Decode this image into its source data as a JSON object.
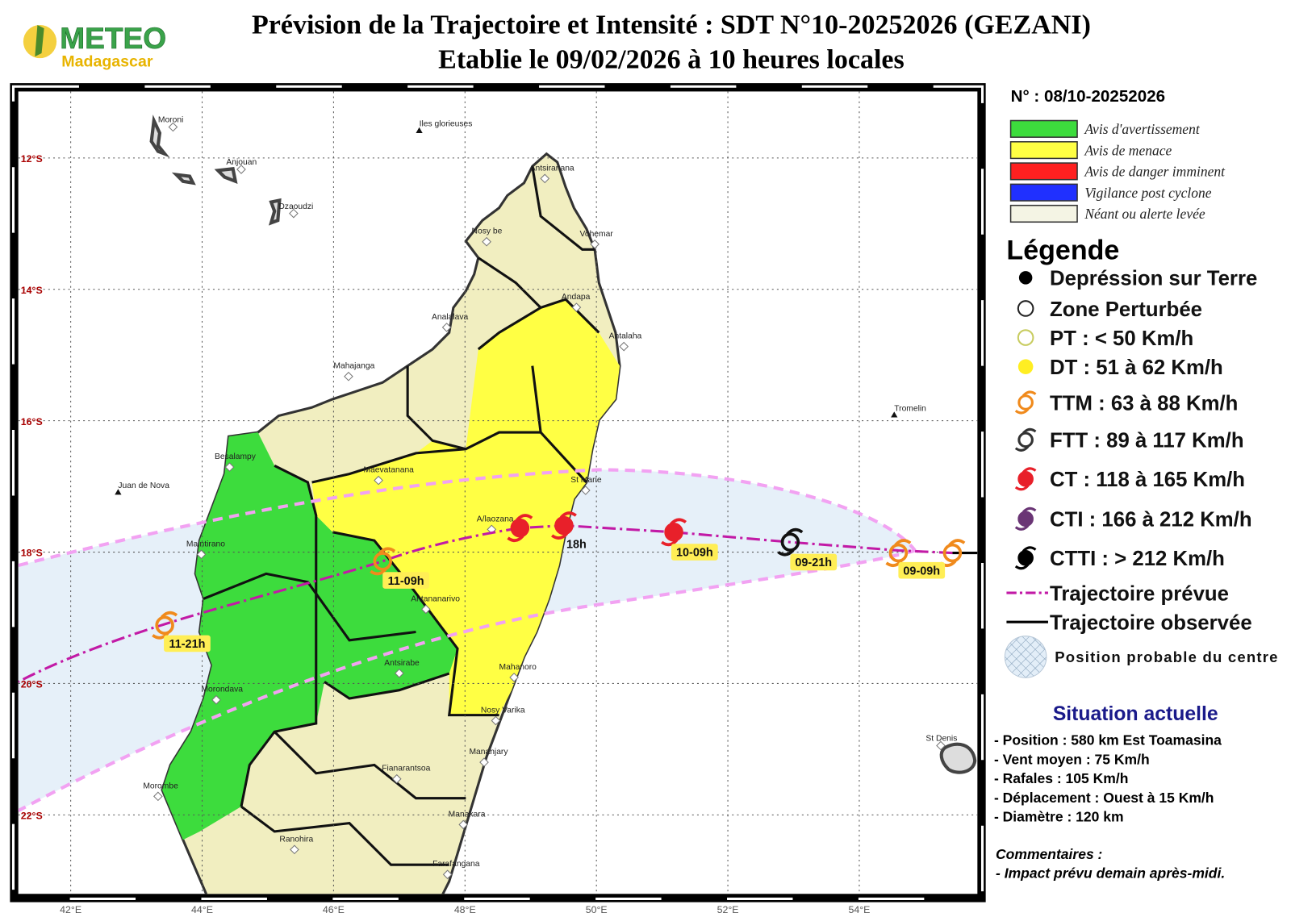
{
  "header": {
    "logo_name": "METEO",
    "logo_sub": "Madagascar",
    "title": "Prévision de la Trajectoire et Intensité : SDT N°10-20252026 (GEZANI)",
    "subtitle": "Etablie le 09/02/2026 à 10 heures locales"
  },
  "map": {
    "lon_labels": [
      "42°E",
      "44°E",
      "46°E",
      "48°E",
      "50°E",
      "52°E",
      "54°E"
    ],
    "lat_labels": [
      "12°S",
      "14°S",
      "16°S",
      "18°S",
      "20°S",
      "22°S"
    ],
    "places": [
      "Moroni",
      "Anjouan",
      "Dzaoudzi",
      "Iles glorieuses",
      "Antsiranana",
      "Nosy be",
      "Vohemar",
      "Analalava",
      "Andapa",
      "Antalaha",
      "Mahajanga",
      "Tromelin",
      "Besalampy",
      "Maevatanana",
      "St Marie",
      "Juan de Nova",
      "A/laozana",
      "Maintirano",
      "Antananarivo",
      "Antsirabe",
      "Mahanoro",
      "Morondava",
      "Nosy Varika",
      "St Denis",
      "Mananjary",
      "Fianarantsoa",
      "Morombe",
      "Manakara",
      "Ranohira",
      "Farafangana"
    ],
    "track_labels": [
      "09-09h",
      "09-21h",
      "10-09h",
      "18h",
      "11-09h",
      "11-21h"
    ]
  },
  "panel": {
    "number": "N° : 08/10-20252026",
    "alerts": [
      "Avis d'avertissement",
      "Avis de menace",
      "Avis de danger imminent",
      "Vigilance post cyclone",
      "Néant ou alerte levée"
    ],
    "legend_title": "Légende",
    "legend": [
      "Depréssion sur Terre",
      "Zone Perturbée",
      "PT : < 50 Km/h",
      "DT : 51 à 62 Km/h",
      "TTM : 63 à 88 Km/h",
      "FTT : 89 à 117 Km/h",
      "CT : 118 à 165 Km/h",
      "CTI : 166 à 212 Km/h",
      "CTTI : > 212 Km/h",
      "Trajectoire prévue",
      "Trajectoire observée",
      "Position probable du centre"
    ],
    "situation_title": "Situation actuelle",
    "situation": [
      "- Position : 580 km Est Toamasina",
      "- Vent moyen : 75 Km/h",
      "- Rafales : 105 Km/h",
      "- Déplacement : Ouest à 15 Km/h",
      "- Diamètre : 120 km"
    ],
    "comments_title": "Commentaires :",
    "comments": [
      "- Impact prévu demain après-midi."
    ]
  }
}
